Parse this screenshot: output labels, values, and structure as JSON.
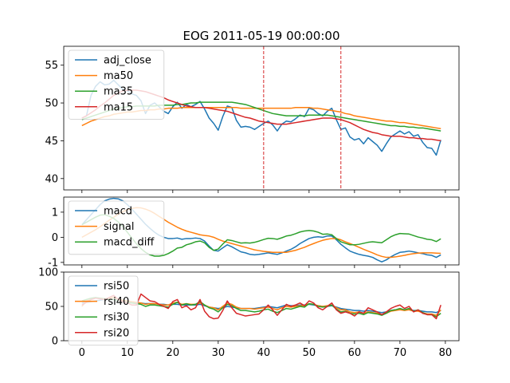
{
  "chart_data": {
    "type": "line",
    "title": "EOG 2011-05-19 00:00:00",
    "x_ticks": [
      0,
      10,
      20,
      30,
      40,
      50,
      60,
      70,
      80
    ],
    "colors": {
      "adj_close": "#1f77b4",
      "ma50": "#ff7f0e",
      "ma35": "#2ca02c",
      "ma15": "#d62728",
      "macd": "#1f77b4",
      "signal": "#ff7f0e",
      "macd_diff": "#2ca02c",
      "rsi50": "#1f77b4",
      "rsi40": "#ff7f0e",
      "rsi30": "#2ca02c",
      "rsi20": "#d62728",
      "vline": "#d62728"
    },
    "panels": [
      {
        "name": "price",
        "xlim": [
          -4,
          83
        ],
        "ylim": [
          38.5,
          57.5
        ],
        "yticks": [
          40,
          45,
          50,
          55
        ],
        "vlines": [
          40,
          57
        ],
        "legend": "upper left",
        "series": [
          {
            "name": "adj_close",
            "values": [
              48.0,
              48.3,
              51.0,
              52.2,
              52.8,
              52.4,
              52.5,
              53.0,
              52.4,
              51.8,
              51.6,
              51.2,
              51.0,
              50.3,
              48.6,
              49.7,
              50.0,
              49.5,
              48.9,
              48.6,
              49.5,
              50.1,
              49.3,
              49.8,
              49.5,
              49.8,
              50.2,
              49.2,
              48.0,
              47.3,
              46.4,
              48.2,
              49.6,
              49.4,
              47.7,
              46.8,
              46.9,
              46.8,
              46.5,
              46.9,
              47.3,
              47.6,
              47.1,
              46.3,
              47.2,
              47.6,
              47.5,
              47.9,
              48.4,
              48.2,
              49.3,
              49.1,
              48.6,
              48.3,
              48.9,
              49.3,
              47.8,
              46.5,
              46.7,
              45.5,
              45.1,
              45.3,
              44.6,
              45.4,
              44.9,
              44.4,
              43.6,
              44.6,
              45.5,
              45.9,
              46.3,
              45.9,
              46.2,
              45.6,
              45.8,
              44.8,
              44.1,
              44.0,
              43.1,
              45.1
            ]
          },
          {
            "name": "ma50",
            "values": [
              47.0,
              47.3,
              47.6,
              47.8,
              48.0,
              48.2,
              48.3,
              48.5,
              48.6,
              48.7,
              48.8,
              48.8,
              48.9,
              49.0,
              49.0,
              49.1,
              49.1,
              49.2,
              49.2,
              49.3,
              49.3,
              49.3,
              49.4,
              49.4,
              49.4,
              49.4,
              49.4,
              49.4,
              49.4,
              49.4,
              49.4,
              49.4,
              49.4,
              49.4,
              49.4,
              49.3,
              49.3,
              49.3,
              49.3,
              49.3,
              49.3,
              49.3,
              49.3,
              49.3,
              49.3,
              49.3,
              49.3,
              49.4,
              49.4,
              49.4,
              49.4,
              49.3,
              49.3,
              49.2,
              49.1,
              49.0,
              48.9,
              48.8,
              48.6,
              48.5,
              48.3,
              48.2,
              48.1,
              48.0,
              47.9,
              47.8,
              47.7,
              47.6,
              47.6,
              47.5,
              47.4,
              47.4,
              47.3,
              47.2,
              47.1,
              47.0,
              46.9,
              46.8,
              46.7,
              46.6
            ]
          },
          {
            "name": "ma35",
            "values": [
              47.8,
              48.0,
              48.2,
              48.4,
              48.6,
              48.8,
              49.0,
              49.2,
              49.3,
              49.4,
              49.5,
              49.5,
              49.6,
              49.6,
              49.6,
              49.6,
              49.6,
              49.7,
              49.7,
              49.7,
              49.7,
              49.8,
              49.8,
              49.9,
              50.0,
              50.0,
              50.1,
              50.1,
              50.1,
              50.1,
              50.1,
              50.1,
              50.1,
              50.1,
              50.0,
              49.9,
              49.8,
              49.6,
              49.4,
              49.2,
              49.0,
              48.8,
              48.6,
              48.5,
              48.4,
              48.3,
              48.3,
              48.3,
              48.3,
              48.3,
              48.4,
              48.4,
              48.4,
              48.4,
              48.4,
              48.3,
              48.2,
              48.1,
              48.0,
              47.9,
              47.8,
              47.7,
              47.6,
              47.5,
              47.4,
              47.3,
              47.2,
              47.1,
              47.0,
              47.0,
              46.9,
              46.9,
              46.8,
              46.8,
              46.7,
              46.7,
              46.6,
              46.5,
              46.4,
              46.3
            ]
          },
          {
            "name": "ma15",
            "values": [
              48.0,
              48.3,
              48.7,
              49.1,
              49.6,
              50.0,
              50.5,
              51.0,
              51.3,
              51.6,
              51.7,
              51.7,
              51.7,
              51.6,
              51.5,
              51.3,
              51.1,
              50.9,
              50.7,
              50.4,
              50.2,
              50.0,
              49.8,
              49.6,
              49.5,
              49.4,
              49.4,
              49.4,
              49.3,
              49.2,
              49.1,
              49.0,
              48.9,
              48.7,
              48.5,
              48.3,
              48.1,
              48.0,
              47.8,
              47.6,
              47.5,
              47.4,
              47.3,
              47.2,
              47.2,
              47.2,
              47.3,
              47.4,
              47.5,
              47.6,
              47.7,
              47.8,
              47.9,
              48.0,
              48.0,
              48.0,
              47.9,
              47.8,
              47.6,
              47.4,
              47.1,
              46.8,
              46.5,
              46.3,
              46.1,
              46.0,
              45.8,
              45.7,
              45.6,
              45.6,
              45.6,
              45.5,
              45.4,
              45.4,
              45.3,
              45.3,
              45.2,
              45.2,
              45.1,
              45.0
            ]
          }
        ]
      },
      {
        "name": "macd",
        "xlim": [
          -4,
          83
        ],
        "ylim": [
          -1.1,
          1.6
        ],
        "yticks": [
          -1,
          0,
          1
        ],
        "legend": "upper left",
        "series": [
          {
            "name": "macd",
            "values": [
              0.5,
              0.7,
              0.9,
              1.1,
              1.3,
              1.45,
              1.52,
              1.55,
              1.53,
              1.45,
              1.3,
              1.12,
              0.92,
              0.72,
              0.52,
              0.35,
              0.2,
              0.08,
              0.0,
              -0.05,
              -0.05,
              -0.03,
              -0.08,
              -0.05,
              -0.05,
              -0.03,
              -0.05,
              -0.15,
              -0.35,
              -0.52,
              -0.55,
              -0.42,
              -0.3,
              -0.38,
              -0.48,
              -0.58,
              -0.62,
              -0.68,
              -0.7,
              -0.68,
              -0.65,
              -0.62,
              -0.65,
              -0.68,
              -0.62,
              -0.55,
              -0.48,
              -0.38,
              -0.25,
              -0.15,
              -0.05,
              0.0,
              0.02,
              0.0,
              0.05,
              0.05,
              -0.1,
              -0.28,
              -0.42,
              -0.55,
              -0.62,
              -0.68,
              -0.72,
              -0.75,
              -0.8,
              -0.9,
              -0.98,
              -0.9,
              -0.78,
              -0.68,
              -0.6,
              -0.58,
              -0.55,
              -0.58,
              -0.62,
              -0.65,
              -0.7,
              -0.72,
              -0.8,
              -0.7
            ]
          },
          {
            "name": "signal",
            "values": [
              0.0,
              0.1,
              0.2,
              0.3,
              0.42,
              0.55,
              0.68,
              0.8,
              0.92,
              1.02,
              1.1,
              1.15,
              1.18,
              1.17,
              1.12,
              1.05,
              0.95,
              0.83,
              0.72,
              0.6,
              0.5,
              0.4,
              0.32,
              0.25,
              0.2,
              0.15,
              0.1,
              0.07,
              0.05,
              0.0,
              -0.08,
              -0.15,
              -0.2,
              -0.25,
              -0.3,
              -0.35,
              -0.4,
              -0.45,
              -0.5,
              -0.53,
              -0.56,
              -0.58,
              -0.6,
              -0.6,
              -0.6,
              -0.6,
              -0.56,
              -0.52,
              -0.46,
              -0.4,
              -0.32,
              -0.25,
              -0.18,
              -0.12,
              -0.08,
              -0.05,
              -0.05,
              -0.1,
              -0.18,
              -0.25,
              -0.32,
              -0.4,
              -0.48,
              -0.55,
              -0.62,
              -0.7,
              -0.76,
              -0.8,
              -0.8,
              -0.78,
              -0.75,
              -0.72,
              -0.68,
              -0.65,
              -0.63,
              -0.62,
              -0.62,
              -0.62,
              -0.63,
              -0.64
            ]
          },
          {
            "name": "macd_diff",
            "values": [
              0.5,
              0.6,
              0.7,
              0.8,
              0.88,
              0.9,
              0.84,
              0.75,
              0.61,
              0.43,
              0.2,
              -0.03,
              -0.26,
              -0.45,
              -0.6,
              -0.7,
              -0.75,
              -0.75,
              -0.72,
              -0.65,
              -0.55,
              -0.43,
              -0.4,
              -0.3,
              -0.25,
              -0.18,
              -0.15,
              -0.22,
              -0.4,
              -0.52,
              -0.47,
              -0.27,
              -0.1,
              -0.13,
              -0.18,
              -0.23,
              -0.22,
              -0.23,
              -0.2,
              -0.15,
              -0.09,
              -0.04,
              -0.05,
              -0.08,
              -0.02,
              0.05,
              0.08,
              0.14,
              0.21,
              0.25,
              0.27,
              0.25,
              0.2,
              0.12,
              0.13,
              0.1,
              -0.05,
              -0.18,
              -0.24,
              -0.3,
              -0.3,
              -0.28,
              -0.24,
              -0.2,
              -0.18,
              -0.2,
              -0.22,
              -0.1,
              0.02,
              0.1,
              0.15,
              0.14,
              0.13,
              0.07,
              0.01,
              -0.03,
              -0.08,
              -0.1,
              -0.17,
              -0.06
            ]
          }
        ]
      },
      {
        "name": "rsi",
        "xlim": [
          -4,
          83
        ],
        "ylim": [
          0,
          100
        ],
        "yticks": [
          0,
          50,
          100
        ],
        "legend": "upper left",
        "series": [
          {
            "name": "rsi50",
            "values": [
              55,
              56,
              57,
              58,
              59,
              60,
              60,
              60,
              59,
              58,
              57,
              56,
              55,
              55,
              54,
              54,
              54,
              53,
              53,
              52,
              53,
              53,
              52,
              52,
              52,
              52,
              53,
              51,
              49,
              48,
              47,
              48,
              50,
              49,
              48,
              47,
              47,
              47,
              47,
              48,
              49,
              50,
              49,
              48,
              50,
              52,
              51,
              51,
              52,
              52,
              53,
              52,
              51,
              50,
              50,
              51,
              49,
              47,
              46,
              45,
              44,
              44,
              43,
              44,
              43,
              42,
              41,
              42,
              44,
              45,
              45,
              45,
              45,
              44,
              44,
              43,
              42,
              42,
              41,
              44
            ]
          },
          {
            "name": "rsi40",
            "values": [
              50,
              58,
              60,
              62,
              62,
              61,
              62,
              63,
              61,
              59,
              58,
              57,
              56,
              55,
              53,
              54,
              54,
              53,
              52,
              52,
              55,
              56,
              53,
              54,
              53,
              53,
              55,
              52,
              49,
              48,
              45,
              50,
              55,
              53,
              49,
              47,
              47,
              47,
              46,
              47,
              48,
              49,
              47,
              45,
              48,
              50,
              49,
              50,
              51,
              51,
              54,
              53,
              51,
              50,
              51,
              52,
              48,
              45,
              45,
              42,
              41,
              42,
              40,
              42,
              41,
              40,
              38,
              40,
              43,
              44,
              45,
              44,
              45,
              43,
              43,
              41,
              39,
              39,
              37,
              45
            ]
          },
          {
            "name": "rsi30",
            "values": [
              58,
              60,
              62,
              63,
              62,
              61,
              60,
              60,
              59,
              57,
              56,
              55,
              54,
              53,
              50,
              52,
              52,
              51,
              50,
              49,
              53,
              56,
              52,
              54,
              52,
              53,
              57,
              52,
              48,
              46,
              42,
              48,
              53,
              51,
              47,
              44,
              44,
              43,
              42,
              43,
              45,
              46,
              43,
              41,
              44,
              47,
              46,
              48,
              50,
              49,
              54,
              53,
              50,
              49,
              50,
              52,
              46,
              42,
              43,
              40,
              39,
              40,
              38,
              41,
              40,
              39,
              37,
              40,
              44,
              45,
              47,
              45,
              47,
              43,
              45,
              41,
              38,
              38,
              35,
              40
            ]
          },
          {
            "name": "rsi20",
            "values": [
              52,
              56,
              60,
              62,
              61,
              60,
              63,
              66,
              60,
              57,
              55,
              52,
              52,
              68,
              63,
              58,
              57,
              53,
              50,
              47,
              57,
              60,
              48,
              51,
              45,
              48,
              60,
              43,
              35,
              32,
              33,
              44,
              58,
              48,
              40,
              38,
              36,
              37,
              38,
              39,
              45,
              52,
              45,
              37,
              45,
              53,
              50,
              52,
              55,
              51,
              58,
              55,
              48,
              45,
              50,
              55,
              45,
              40,
              42,
              40,
              36,
              42,
              40,
              48,
              45,
              42,
              38,
              42,
              47,
              50,
              52,
              47,
              50,
              42,
              45,
              40,
              38,
              38,
              32,
              52
            ]
          }
        ]
      }
    ]
  }
}
